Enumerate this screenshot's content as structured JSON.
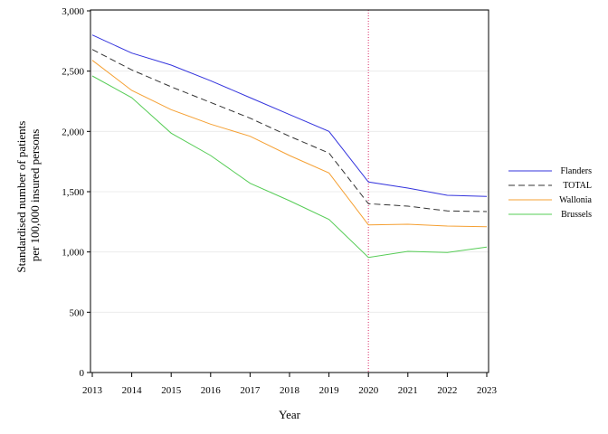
{
  "chart_data": {
    "type": "line",
    "x": [
      2013,
      2014,
      2015,
      2016,
      2017,
      2018,
      2019,
      2020,
      2021,
      2022,
      2023
    ],
    "xlabel": "Year",
    "ylabel": [
      "Standardised number of patients",
      "per 100,000 insured persons"
    ],
    "ylim": [
      0,
      3000
    ],
    "yticks": [
      0,
      500,
      1000,
      1500,
      2000,
      2500,
      3000
    ],
    "ytick_labels": [
      "0",
      "500",
      "1,000",
      "1,500",
      "2,000",
      "2,500",
      "3,000"
    ],
    "grid": "horizontal",
    "legend_position": "right",
    "reference_line": {
      "x": 2020,
      "color": "#e05080",
      "style": "dotted"
    },
    "series": [
      {
        "name": "Flanders",
        "color": "#3333dd",
        "dash": "solid",
        "values": [
          2800,
          2650,
          2550,
          2420,
          2280,
          2140,
          2000,
          1580,
          1530,
          1470,
          1460
        ]
      },
      {
        "name": "TOTAL",
        "color": "#333333",
        "dash": "dashed",
        "values": [
          2680,
          2510,
          2370,
          2240,
          2110,
          1960,
          1820,
          1400,
          1380,
          1340,
          1335
        ]
      },
      {
        "name": "Wallonia",
        "color": "#f5a033",
        "dash": "solid",
        "values": [
          2590,
          2340,
          2180,
          2060,
          1960,
          1800,
          1655,
          1225,
          1230,
          1215,
          1210
        ]
      },
      {
        "name": "Brussels",
        "color": "#55cc55",
        "dash": "solid",
        "values": [
          2460,
          2280,
          1985,
          1800,
          1570,
          1425,
          1270,
          955,
          1005,
          995,
          1040
        ]
      }
    ]
  }
}
